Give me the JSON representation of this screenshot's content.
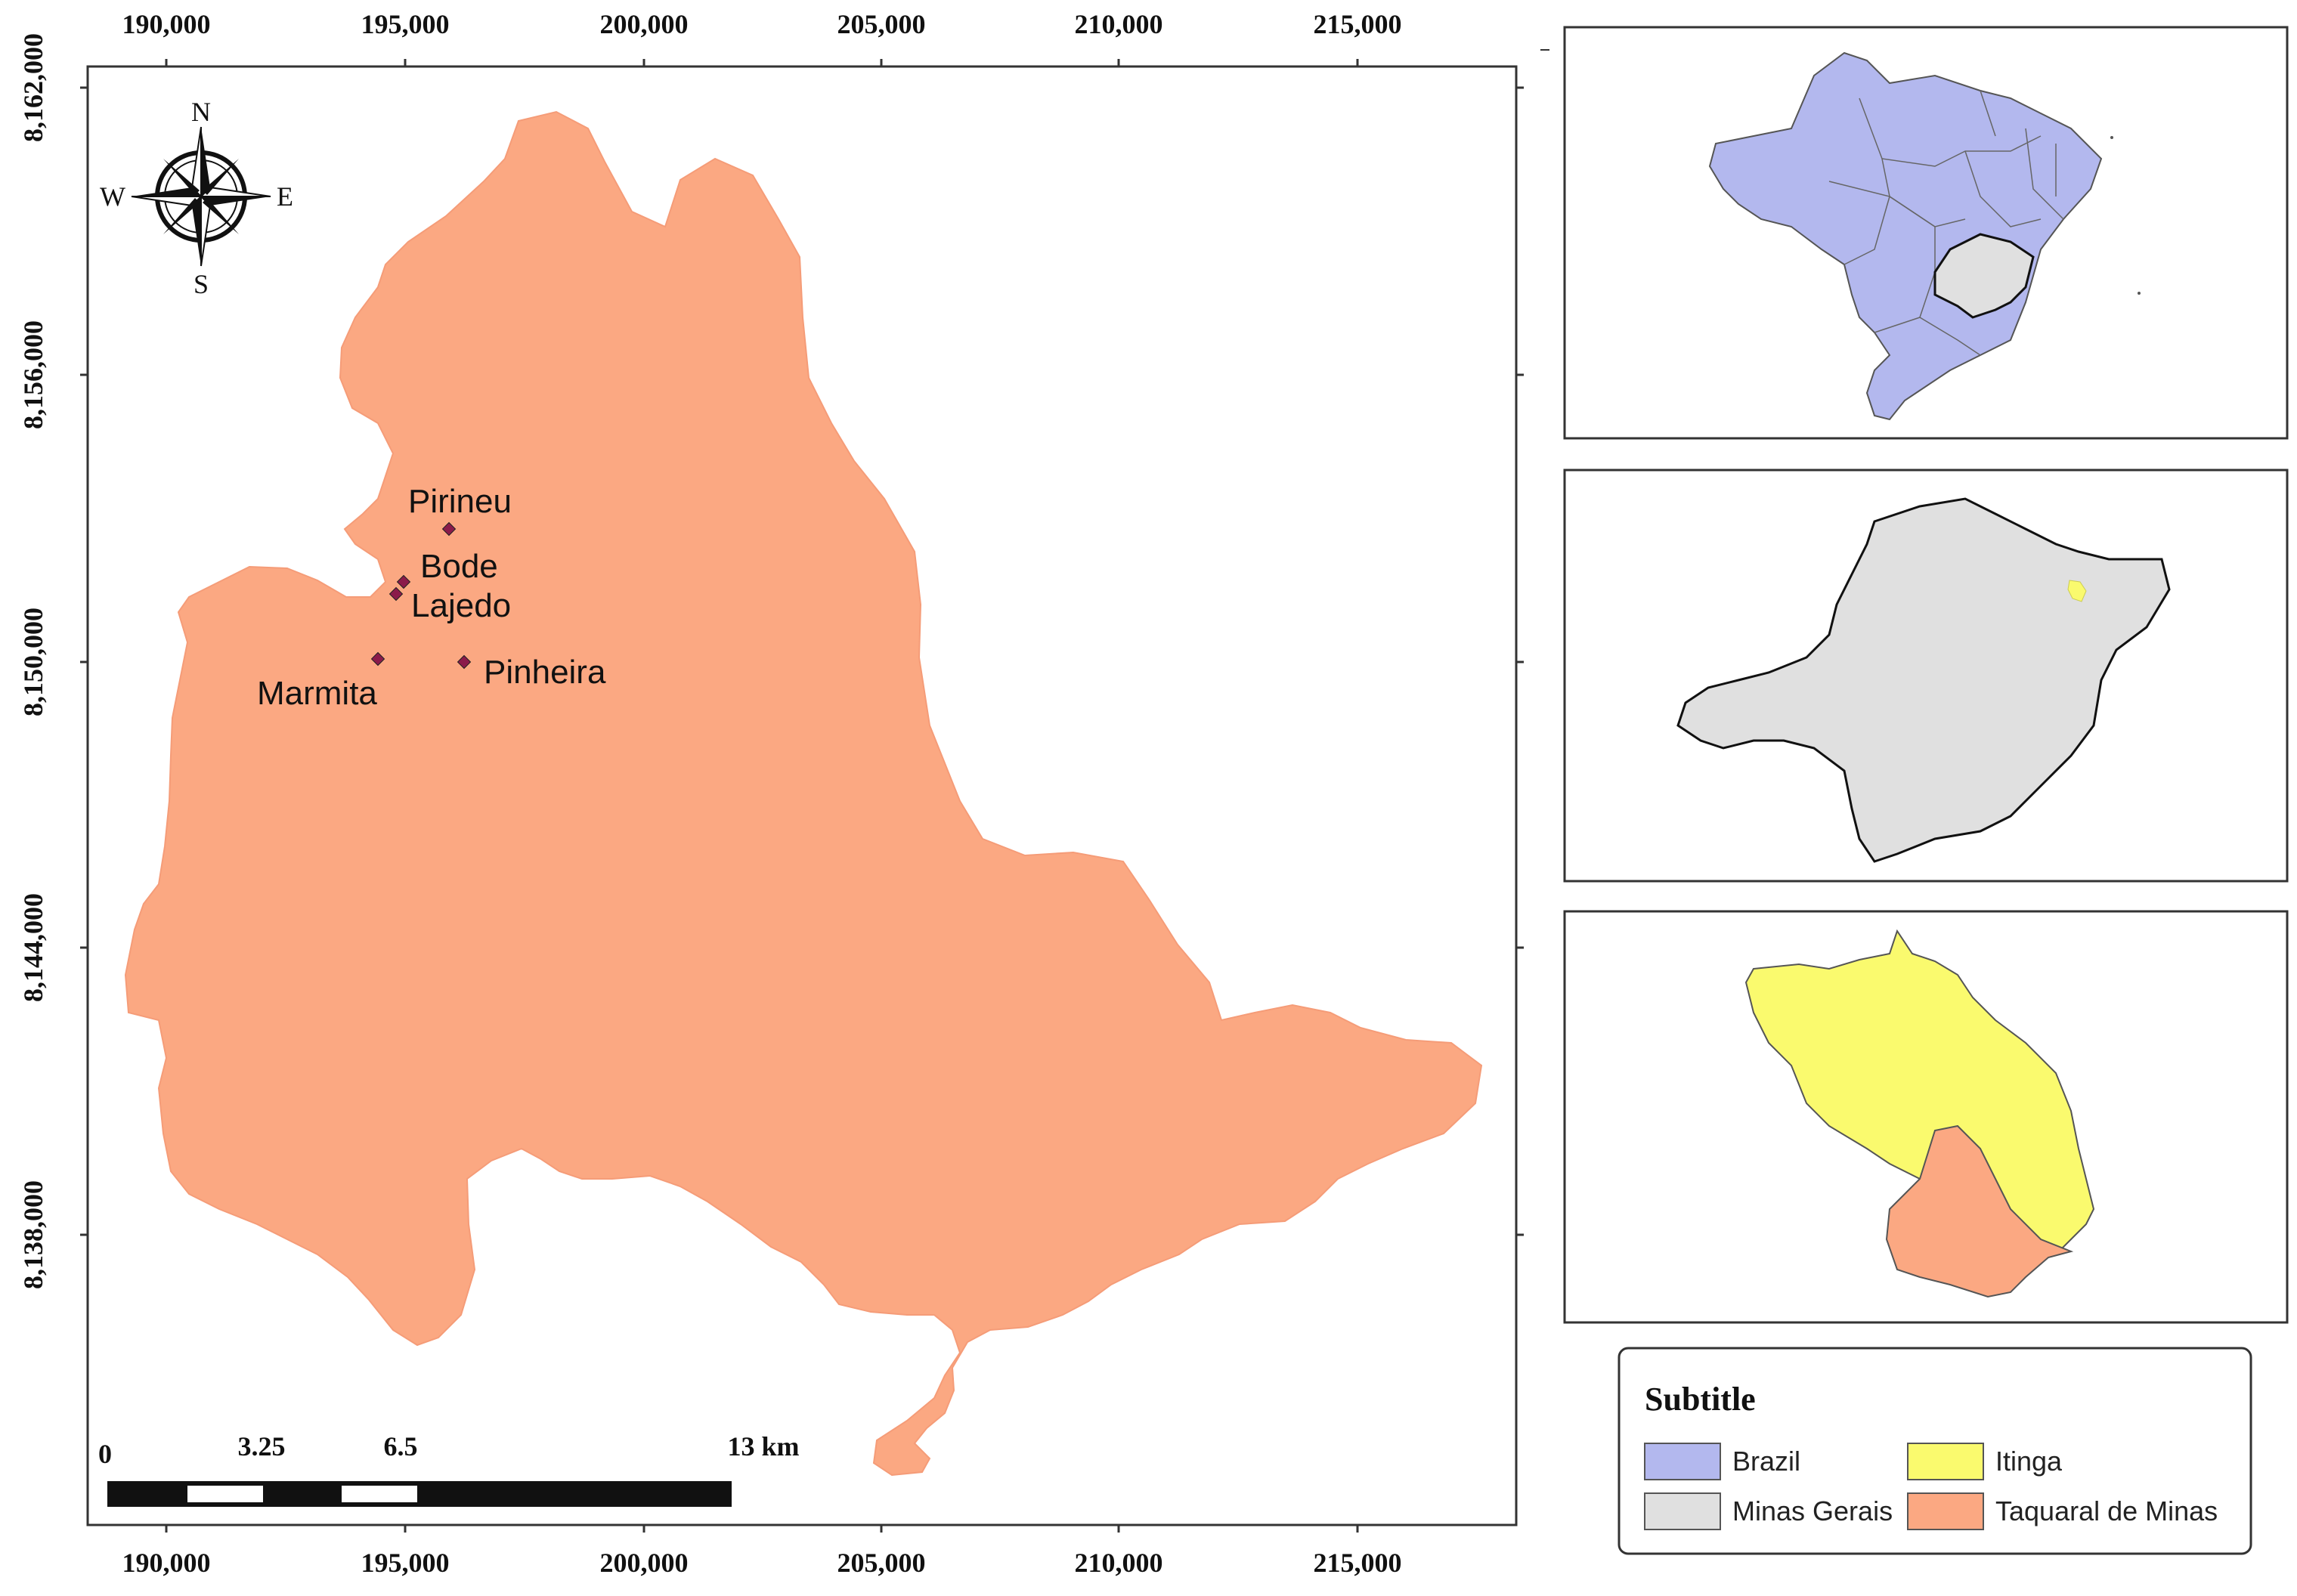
{
  "main_map": {
    "x_ticks": [
      "190,000",
      "195,000",
      "200,000",
      "205,000",
      "210,000",
      "215,000"
    ],
    "y_ticks": [
      "8,162,000",
      "8,156,000",
      "8,150,000",
      "8,144,000",
      "8,138,000"
    ],
    "places": [
      {
        "name": "Pirineu"
      },
      {
        "name": "Bode"
      },
      {
        "name": "Lajedo"
      },
      {
        "name": "Marmita"
      },
      {
        "name": "Pinheira"
      }
    ],
    "compass": {
      "n": "N",
      "s": "S",
      "e": "E",
      "w": "W"
    },
    "scale_bar": {
      "labels": [
        "0",
        "3.25",
        "6.5",
        "13 km"
      ]
    },
    "colors": {
      "taquaral": "#fba882",
      "points": "#8b1a4a"
    }
  },
  "insets": {
    "brazil": {
      "fill": "#b3b8ee"
    },
    "minas_gerais": {
      "fill": "#e0e0e0"
    },
    "itinga": {
      "fill": "#fafa6e"
    }
  },
  "legend": {
    "title": "Subtitle",
    "items": [
      {
        "label": "Brazil",
        "color": "#b3b8ee"
      },
      {
        "label": "Itinga",
        "color": "#fafa6e"
      },
      {
        "label": "Minas Gerais",
        "color": "#e0e0e0"
      },
      {
        "label": "Taquaral de Minas",
        "color": "#fba882"
      }
    ]
  }
}
